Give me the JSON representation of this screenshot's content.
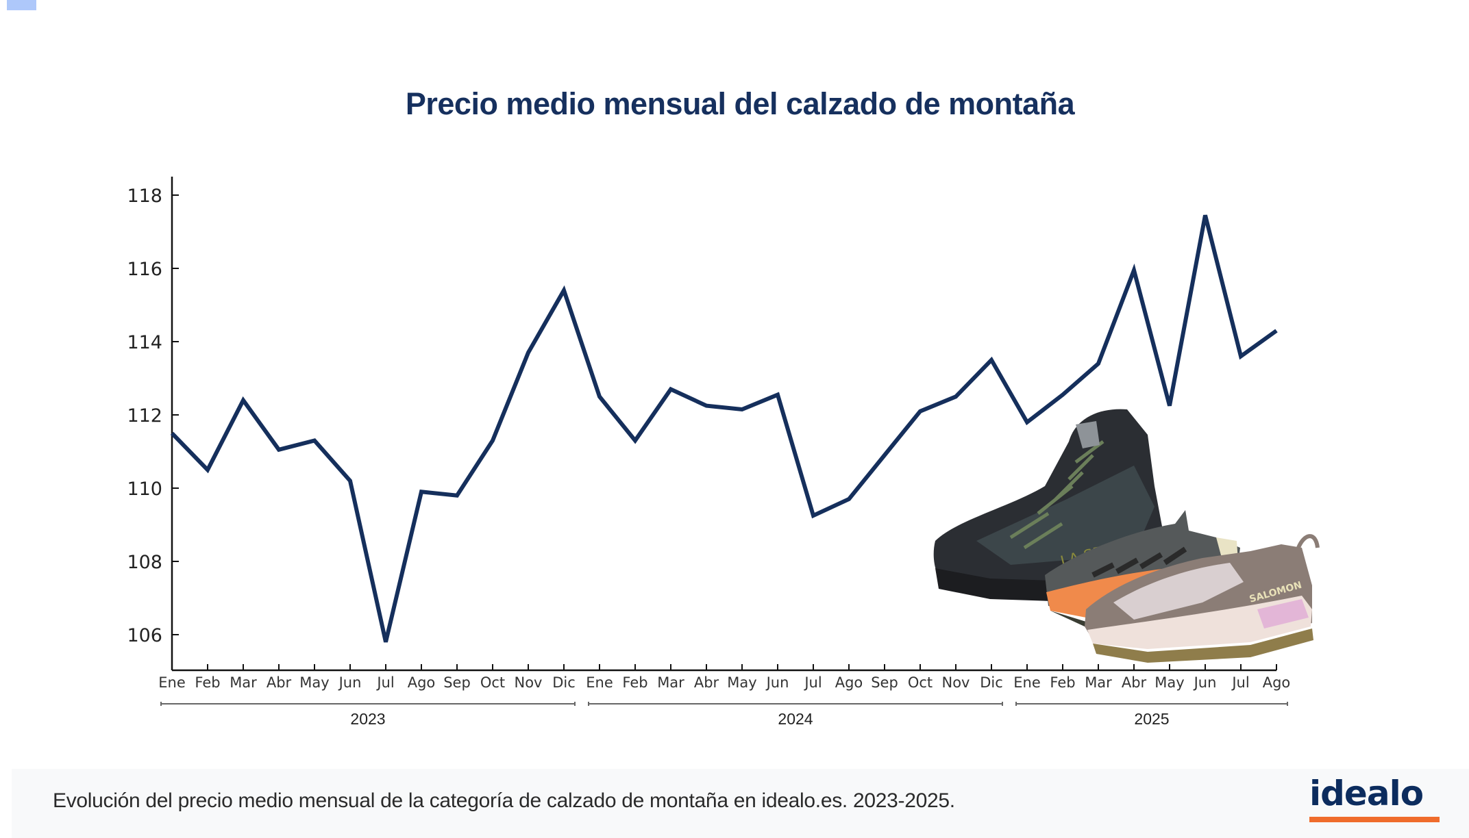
{
  "header": {
    "title": "Precio medio mensual del calzado de montaña"
  },
  "footer": {
    "caption": "Evolución del precio medio mensual de la categoría de calzado de montaña en idealo.es. 2023-2025.",
    "logo_text": "idealo",
    "logo_colors": {
      "text": "#0c2c5e",
      "underline": "#ef6c2c"
    }
  },
  "illustration": {
    "description": "hiking-shoes-image",
    "brands": [
      "LA SPORTIVA",
      "SALOMON"
    ]
  },
  "chart_data": {
    "type": "line",
    "title": "Precio medio mensual del calzado de montaña",
    "xlabel": "",
    "ylabel": "",
    "ylim": [
      105,
      118.5
    ],
    "yticks": [
      106,
      108,
      110,
      112,
      114,
      116,
      118
    ],
    "grid": false,
    "legend": null,
    "line_color": "#152f5c",
    "categories": [
      "Ene",
      "Feb",
      "Mar",
      "Abr",
      "May",
      "Jun",
      "Jul",
      "Ago",
      "Sep",
      "Oct",
      "Nov",
      "Dic",
      "Ene",
      "Feb",
      "Mar",
      "Abr",
      "May",
      "Jun",
      "Jul",
      "Ago",
      "Sep",
      "Oct",
      "Nov",
      "Dic",
      "Ene",
      "Feb",
      "Mar",
      "Abr",
      "May",
      "Jun",
      "Jul",
      "Ago"
    ],
    "year_groups": [
      {
        "label": "2023",
        "start": 0,
        "end": 11
      },
      {
        "label": "2024",
        "start": 12,
        "end": 23
      },
      {
        "label": "2025",
        "start": 24,
        "end": 31
      }
    ],
    "series": [
      {
        "name": "Precio medio mensual",
        "values": [
          111.5,
          110.5,
          112.4,
          111.05,
          111.3,
          110.2,
          105.8,
          109.9,
          109.8,
          111.3,
          113.7,
          115.4,
          112.5,
          111.3,
          112.7,
          112.25,
          112.15,
          112.55,
          109.25,
          109.7,
          110.9,
          112.1,
          112.5,
          113.5,
          111.8,
          112.55,
          113.4,
          115.95,
          112.25,
          117.45,
          113.6,
          114.3
        ]
      }
    ]
  }
}
